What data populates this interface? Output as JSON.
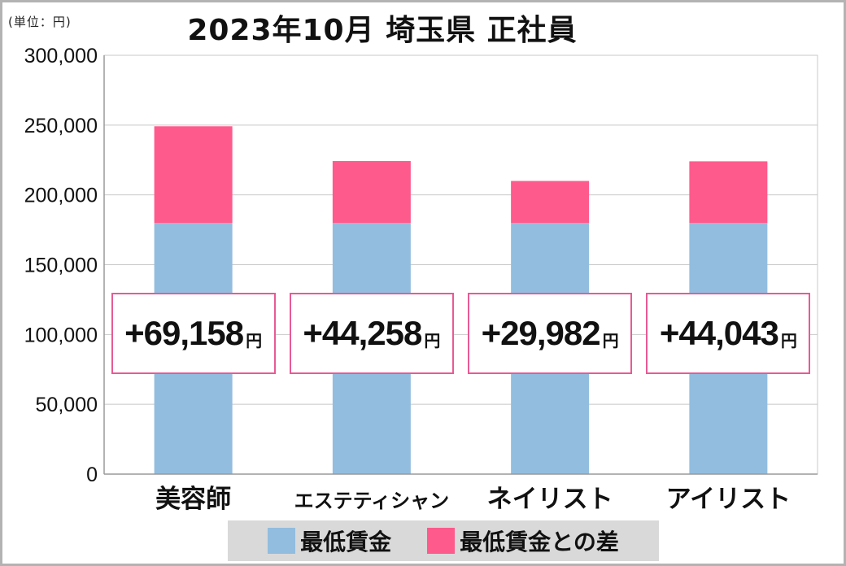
{
  "unit_label": "(単位：円)",
  "title": "2023年10月 埼玉県 正社員",
  "colors": {
    "minimum_wage": "#92bddf",
    "difference": "#ff5a8c",
    "grid": "#c8c8c8",
    "box_border": "#e85a94",
    "legend_bg": "#d9d9d9"
  },
  "chart_data": {
    "type": "bar",
    "stacked": true,
    "title": "2023年10月 埼玉県 正社員",
    "ylabel": "(単位：円)",
    "ylim": [
      0,
      300000
    ],
    "yticks": [
      0,
      50000,
      100000,
      150000,
      200000,
      250000,
      300000
    ],
    "ytick_labels": [
      "0",
      "50,000",
      "100,000",
      "150,000",
      "200,000",
      "250,000",
      "300,000"
    ],
    "categories": [
      "美容師",
      "エステティシャン",
      "ネイリスト",
      "アイリスト"
    ],
    "series": [
      {
        "name": "最低賃金",
        "values": [
          180000,
          180000,
          180000,
          180000
        ]
      },
      {
        "name": "最低賃金との差",
        "values": [
          69158,
          44258,
          29982,
          44043
        ]
      }
    ],
    "annotations": [
      "+69,158",
      "+44,258",
      "+29,982",
      "+44,043"
    ],
    "annotation_unit": "円",
    "legend": [
      "最低賃金",
      "最低賃金との差"
    ],
    "grid": true
  }
}
